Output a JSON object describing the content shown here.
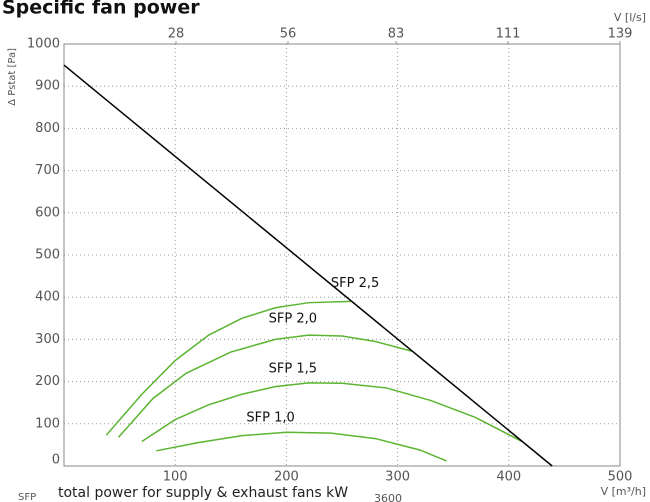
{
  "chart_data": {
    "type": "line",
    "title": "Specific fan power",
    "y_label": "Δ Pstat [Pa]",
    "x_label": "V [m³/h]",
    "x2_label": "V [l/s]",
    "xlim": [
      0,
      500
    ],
    "xticks": [
      100,
      200,
      300,
      400,
      500
    ],
    "x2lim": [
      0,
      139
    ],
    "x2ticks": [
      28,
      56,
      83,
      111,
      139
    ],
    "ylim": [
      0,
      1000
    ],
    "yticks": [
      0,
      100,
      200,
      300,
      400,
      500,
      600,
      700,
      800,
      900,
      1000
    ],
    "grid": true,
    "series": [
      {
        "name": "SFP 2,5",
        "color": "#5bb531",
        "x": [
          38,
          70,
          100,
          130,
          160,
          190,
          220,
          258
        ],
        "values": [
          73,
          170,
          250,
          310,
          350,
          375,
          387,
          390
        ]
      },
      {
        "name": "SFP 2,0",
        "color": "#5bb531",
        "x": [
          49,
          80,
          110,
          150,
          190,
          220,
          250,
          280,
          313
        ],
        "values": [
          68,
          160,
          220,
          270,
          300,
          310,
          308,
          295,
          272
        ]
      },
      {
        "name": "SFP 1,5",
        "color": "#5bb531",
        "x": [
          70,
          100,
          130,
          160,
          190,
          220,
          250,
          290,
          330,
          370,
          412
        ],
        "values": [
          58,
          110,
          145,
          170,
          188,
          197,
          196,
          185,
          155,
          115,
          58
        ]
      },
      {
        "name": "SFP 1,0",
        "color": "#5bb531",
        "x": [
          83,
          120,
          160,
          200,
          240,
          280,
          320,
          344
        ],
        "values": [
          36,
          55,
          72,
          80,
          78,
          65,
          38,
          12
        ]
      },
      {
        "color": "#000000",
        "x": [
          0,
          439
        ],
        "values": [
          950,
          0
        ]
      }
    ],
    "footnote": {
      "prefix": "SFP",
      "numerator": "total power for supply & exhaust fans kW",
      "denominator": "3600"
    }
  }
}
